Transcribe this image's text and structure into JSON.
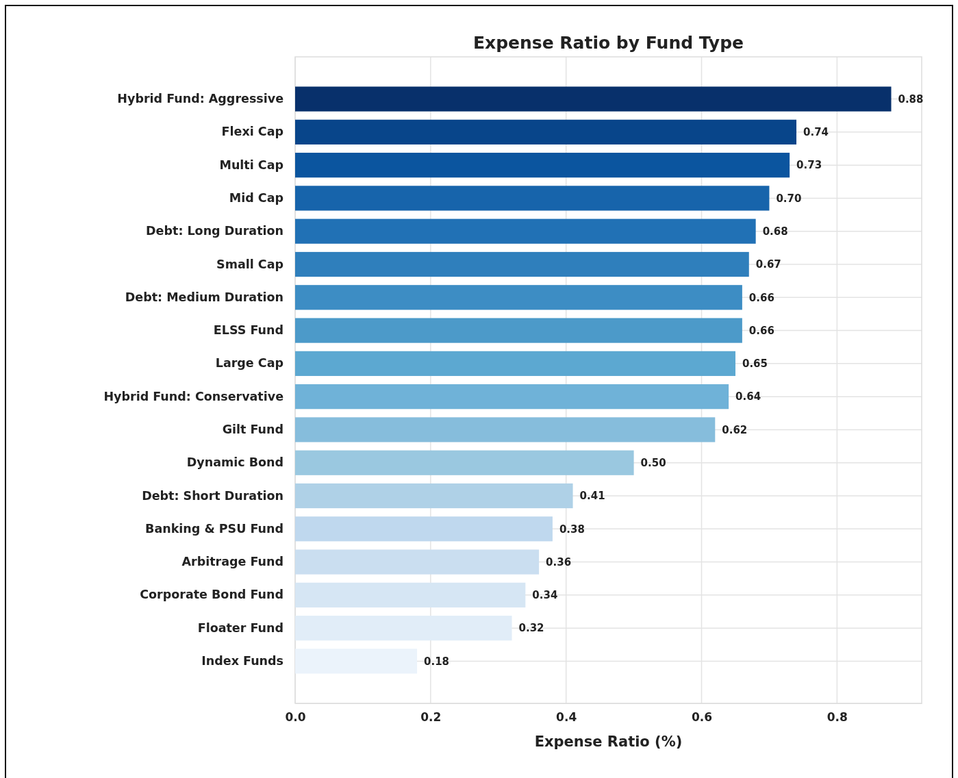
{
  "chart_data": {
    "type": "bar",
    "orientation": "horizontal",
    "title": "Expense Ratio by Fund Type",
    "xlabel": "Expense Ratio (%)",
    "categories": [
      "Hybrid Fund: Aggressive",
      "Flexi Cap",
      "Multi Cap",
      "Mid Cap",
      "Debt: Long Duration",
      "Small Cap",
      "Debt: Medium Duration",
      "ELSS Fund",
      "Large Cap",
      "Hybrid Fund: Conservative",
      "Gilt Fund",
      "Dynamic Bond",
      "Debt: Short Duration",
      "Banking & PSU Fund",
      "Arbitrage Fund",
      "Corporate Bond Fund",
      "Floater Fund",
      "Index Funds"
    ],
    "values": [
      0.88,
      0.74,
      0.73,
      0.7,
      0.68,
      0.67,
      0.66,
      0.66,
      0.65,
      0.64,
      0.62,
      0.5,
      0.41,
      0.38,
      0.36,
      0.34,
      0.32,
      0.18
    ],
    "value_labels": [
      "0.88",
      "0.74",
      "0.73",
      "0.70",
      "0.68",
      "0.67",
      "0.66",
      "0.66",
      "0.65",
      "0.64",
      "0.62",
      "0.50",
      "0.41",
      "0.38",
      "0.36",
      "0.34",
      "0.32",
      "0.18"
    ],
    "colors": [
      "#08306b",
      "#08458a",
      "#0b559f",
      "#1764ab",
      "#2171b5",
      "#2f7fbc",
      "#3d8dc4",
      "#4c9ac9",
      "#5ca8d1",
      "#6fb2d8",
      "#86bddc",
      "#9ac8e0",
      "#afd1e7",
      "#bfd8ee",
      "#cadef0",
      "#d6e6f4",
      "#e1edf8",
      "#ebf3fb"
    ],
    "xlim": [
      0,
      0.925
    ],
    "xticks": [
      {
        "value": 0,
        "label": "0.0"
      },
      0.2,
      0.4,
      0.6,
      0.8
    ],
    "grid": true
  }
}
